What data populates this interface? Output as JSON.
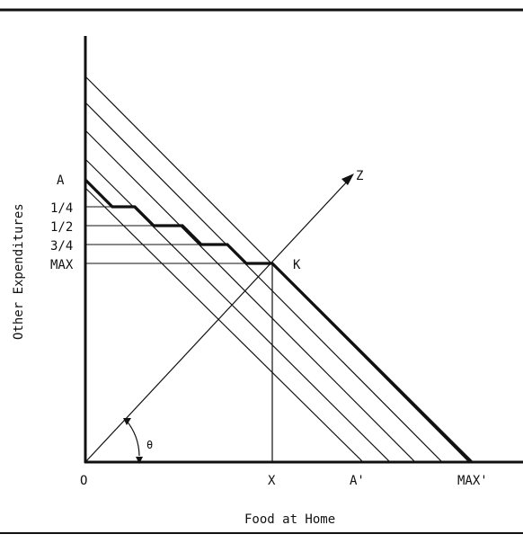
{
  "diagram": {
    "axes": {
      "x_label": "Food at Home",
      "y_label": "Other Expenditures"
    },
    "y_ticks": [
      "A",
      "1/4",
      "1/2",
      "3/4",
      "MAX"
    ],
    "x_ticks": [
      "O",
      "X",
      "A'",
      "MAX'"
    ],
    "point_labels": {
      "ray": "Z",
      "intersection": "K",
      "angle": "θ"
    }
  }
}
